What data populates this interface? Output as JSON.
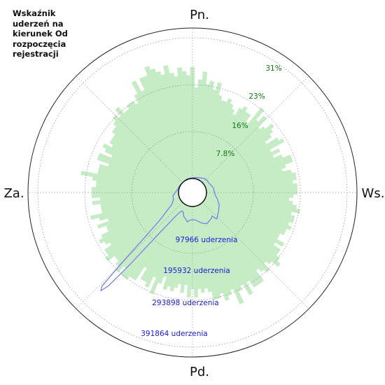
{
  "chart_data": {
    "type": "polar",
    "title": "Wskaźnik uderzeń na kierunek Od rozpoczęcia rejestracji",
    "directions": {
      "north": "Pn.",
      "east": "Ws.",
      "south": "Pd.",
      "west": "Za."
    },
    "percent_ticks": [
      "7.8%",
      "16%",
      "23%",
      "31%"
    ],
    "percent_tick_values": [
      7.8,
      15.6,
      23.4,
      31.2
    ],
    "count_ticks": [
      "97966 uderzenia",
      "195932 uderzenia",
      "293898 uderzenia",
      "391864 uderzenia"
    ],
    "count_tick_values": [
      97966,
      195932,
      293898,
      391864
    ],
    "rate_series": {
      "name": "percent",
      "color": "#c5ecc5",
      "angle_step_deg": 2,
      "values": [
        27,
        22,
        24,
        26,
        23,
        24,
        22,
        24,
        21,
        20,
        20,
        21,
        20,
        19,
        18,
        20,
        21,
        20,
        20,
        18,
        23,
        20,
        22,
        19,
        20,
        22,
        21,
        20,
        18,
        21,
        22,
        18,
        20,
        18,
        20,
        22,
        22,
        20,
        19,
        21,
        22,
        22,
        21,
        22,
        22,
        22,
        21,
        20,
        21,
        22,
        23,
        21,
        22,
        22,
        21,
        22,
        21,
        21,
        20,
        20,
        22,
        20,
        22,
        22,
        23,
        24,
        22,
        21,
        23,
        22,
        21,
        24,
        24,
        24,
        22,
        25,
        22,
        23,
        26,
        22,
        23,
        24,
        22,
        23,
        23,
        21,
        20,
        21,
        20,
        22,
        20,
        22,
        19,
        21,
        19,
        20,
        21,
        20,
        21,
        18,
        20,
        23,
        19,
        22,
        21,
        21,
        18,
        22,
        22,
        23,
        23,
        21,
        23,
        22,
        21,
        21,
        23,
        22,
        22,
        20,
        21,
        22,
        21,
        19,
        19,
        21,
        18,
        20,
        22,
        19,
        19,
        19,
        21,
        19,
        21,
        21,
        21,
        20,
        20,
        21,
        24,
        20,
        20,
        20,
        18,
        21,
        21,
        18,
        20,
        21,
        19,
        20,
        20,
        20,
        21,
        21,
        22,
        23,
        22,
        24,
        22,
        22,
        23,
        23,
        22,
        24,
        27,
        24,
        27,
        27,
        29,
        28,
        27,
        26,
        28,
        26,
        25,
        27,
        26,
        25
      ]
    },
    "count_series": {
      "name": "count",
      "color": "#7777ee",
      "points": [
        [
          0,
          2500
        ],
        [
          20,
          6000
        ],
        [
          40,
          13000
        ],
        [
          50,
          15000
        ],
        [
          60,
          15000
        ],
        [
          70,
          19000
        ],
        [
          80,
          23000
        ],
        [
          90,
          24000
        ],
        [
          95,
          26000
        ],
        [
          100,
          30000
        ],
        [
          105,
          36000
        ],
        [
          110,
          41000
        ],
        [
          115,
          47000
        ],
        [
          120,
          50000
        ],
        [
          125,
          55000
        ],
        [
          130,
          58000
        ],
        [
          135,
          64000
        ],
        [
          138,
          66000
        ],
        [
          140,
          51000
        ],
        [
          145,
          56000
        ],
        [
          150,
          58000
        ],
        [
          155,
          62000
        ],
        [
          160,
          58000
        ],
        [
          165,
          52000
        ],
        [
          170,
          45000
        ],
        [
          175,
          41000
        ],
        [
          180,
          40000
        ],
        [
          185,
          42000
        ],
        [
          190,
          48000
        ],
        [
          195,
          40000
        ],
        [
          200,
          35000
        ],
        [
          205,
          24000
        ],
        [
          210,
          22000
        ],
        [
          213,
          30000
        ],
        [
          216,
          50000
        ],
        [
          219,
          110000
        ],
        [
          221,
          250000
        ],
        [
          222,
          340000
        ],
        [
          223,
          366000
        ],
        [
          224,
          355000
        ],
        [
          225,
          270000
        ],
        [
          227,
          150000
        ],
        [
          230,
          85000
        ],
        [
          235,
          50000
        ],
        [
          240,
          30000
        ],
        [
          250,
          19000
        ],
        [
          260,
          18000
        ],
        [
          270,
          10000
        ],
        [
          280,
          4500
        ],
        [
          300,
          1500
        ],
        [
          340,
          2000
        ],
        [
          360,
          2500
        ]
      ]
    }
  }
}
